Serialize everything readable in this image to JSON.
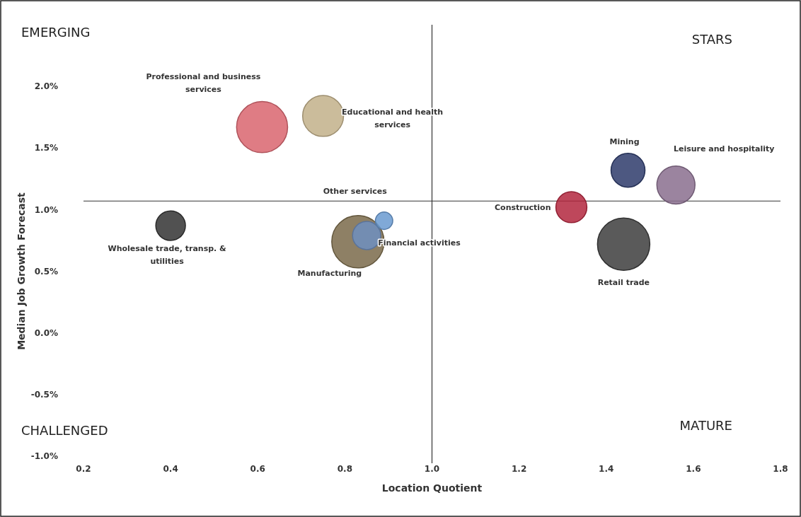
{
  "chart_data": {
    "type": "bubble",
    "xlabel": "Location Quotient",
    "ylabel": "Median Job Growth Forecast",
    "xlim": [
      0.2,
      1.8
    ],
    "ylim": [
      -1.0,
      2.5
    ],
    "xticks": [
      {
        "value": 0.2,
        "label": "0.2"
      },
      {
        "value": 0.4,
        "label": "0.4"
      },
      {
        "value": 0.6,
        "label": "0.6"
      },
      {
        "value": 0.8,
        "label": "0.8"
      },
      {
        "value": 1.0,
        "label": "1.0"
      },
      {
        "value": 1.2,
        "label": "1.2"
      },
      {
        "value": 1.4,
        "label": "1.4"
      },
      {
        "value": 1.6,
        "label": "1.6"
      },
      {
        "value": 1.8,
        "label": "1.8"
      }
    ],
    "yticks": [
      {
        "value": -1.0,
        "label": "-1.0%"
      },
      {
        "value": -0.5,
        "label": "-0.5%"
      },
      {
        "value": 0.0,
        "label": "0.0%"
      },
      {
        "value": 0.5,
        "label": "0.5%"
      },
      {
        "value": 1.0,
        "label": "1.0%"
      },
      {
        "value": 1.5,
        "label": "1.5%"
      },
      {
        "value": 2.0,
        "label": "2.0%"
      }
    ],
    "ref_lines": [
      {
        "axis": "x",
        "value": 1.0,
        "color": "#333333"
      },
      {
        "axis": "y",
        "value": 1.07,
        "color": "#333333"
      }
    ],
    "annotations": [
      "EMERGING",
      "STARS",
      "CHALLENGED",
      "MATURE"
    ],
    "series": [
      {
        "name": "Professional and business services",
        "color": "#d9656f",
        "x": [
          0.61
        ],
        "values": [
          1.67
        ],
        "sizes": [
          0.95
        ]
      },
      {
        "name": "Educational and health services",
        "color": "#c2b08a",
        "x": [
          0.75
        ],
        "values": [
          1.76
        ],
        "sizes": [
          0.61
        ]
      },
      {
        "name": "Mining",
        "color": "#2e3b6b",
        "x": [
          1.45
        ],
        "values": [
          1.32
        ],
        "sizes": [
          0.42
        ]
      },
      {
        "name": "Leisure and hospitality",
        "color": "#8a6f8e",
        "x": [
          1.56
        ],
        "values": [
          1.2
        ],
        "sizes": [
          0.53
        ]
      },
      {
        "name": "Construction",
        "color": "#b3273e",
        "x": [
          1.32
        ],
        "values": [
          1.02
        ],
        "sizes": [
          0.35
        ]
      },
      {
        "name": "Retail trade",
        "color": "#3d3d3d",
        "x": [
          1.44
        ],
        "values": [
          0.72
        ],
        "sizes": [
          1
        ]
      },
      {
        "name": "Wholesale trade, transp. & utilities",
        "color": "#333333",
        "x": [
          0.4
        ],
        "values": [
          0.87
        ],
        "sizes": [
          0.32
        ]
      },
      {
        "name": "Manufacturing",
        "color": "#7a6a4a",
        "x": [
          0.83
        ],
        "values": [
          0.74
        ],
        "sizes": [
          1
        ]
      },
      {
        "name": "Financial activities",
        "color": "#6f8fc0",
        "x": [
          0.85
        ],
        "values": [
          0.79
        ],
        "sizes": [
          0.29
        ]
      },
      {
        "name": "Other services",
        "color": "#6a9ad0",
        "x": [
          0.89
        ],
        "values": [
          0.91
        ],
        "sizes": [
          0.11
        ]
      }
    ]
  }
}
